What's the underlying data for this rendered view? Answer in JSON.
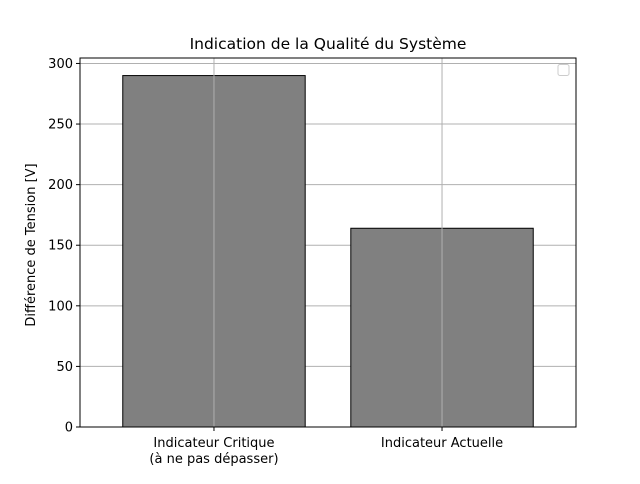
{
  "chart_data": {
    "type": "bar",
    "title": "Indication de la Qualité du Système",
    "xlabel": "",
    "ylabel": "Différence de Tension [V]",
    "categories": [
      [
        "Indicateur Critique",
        "(à ne pas dépasser)"
      ],
      [
        "Indicateur Actuelle"
      ]
    ],
    "values": [
      290,
      164
    ],
    "ylim": [
      0,
      304.5
    ],
    "yticks": [
      0,
      50,
      100,
      150,
      200,
      250,
      300
    ],
    "grid": true,
    "legend": {
      "placement": "upper right",
      "entries": []
    },
    "colors": {
      "bar_fill": "#808080",
      "bar_edge": "#000000",
      "grid": "#b0b0b0",
      "axis": "#000000"
    }
  }
}
